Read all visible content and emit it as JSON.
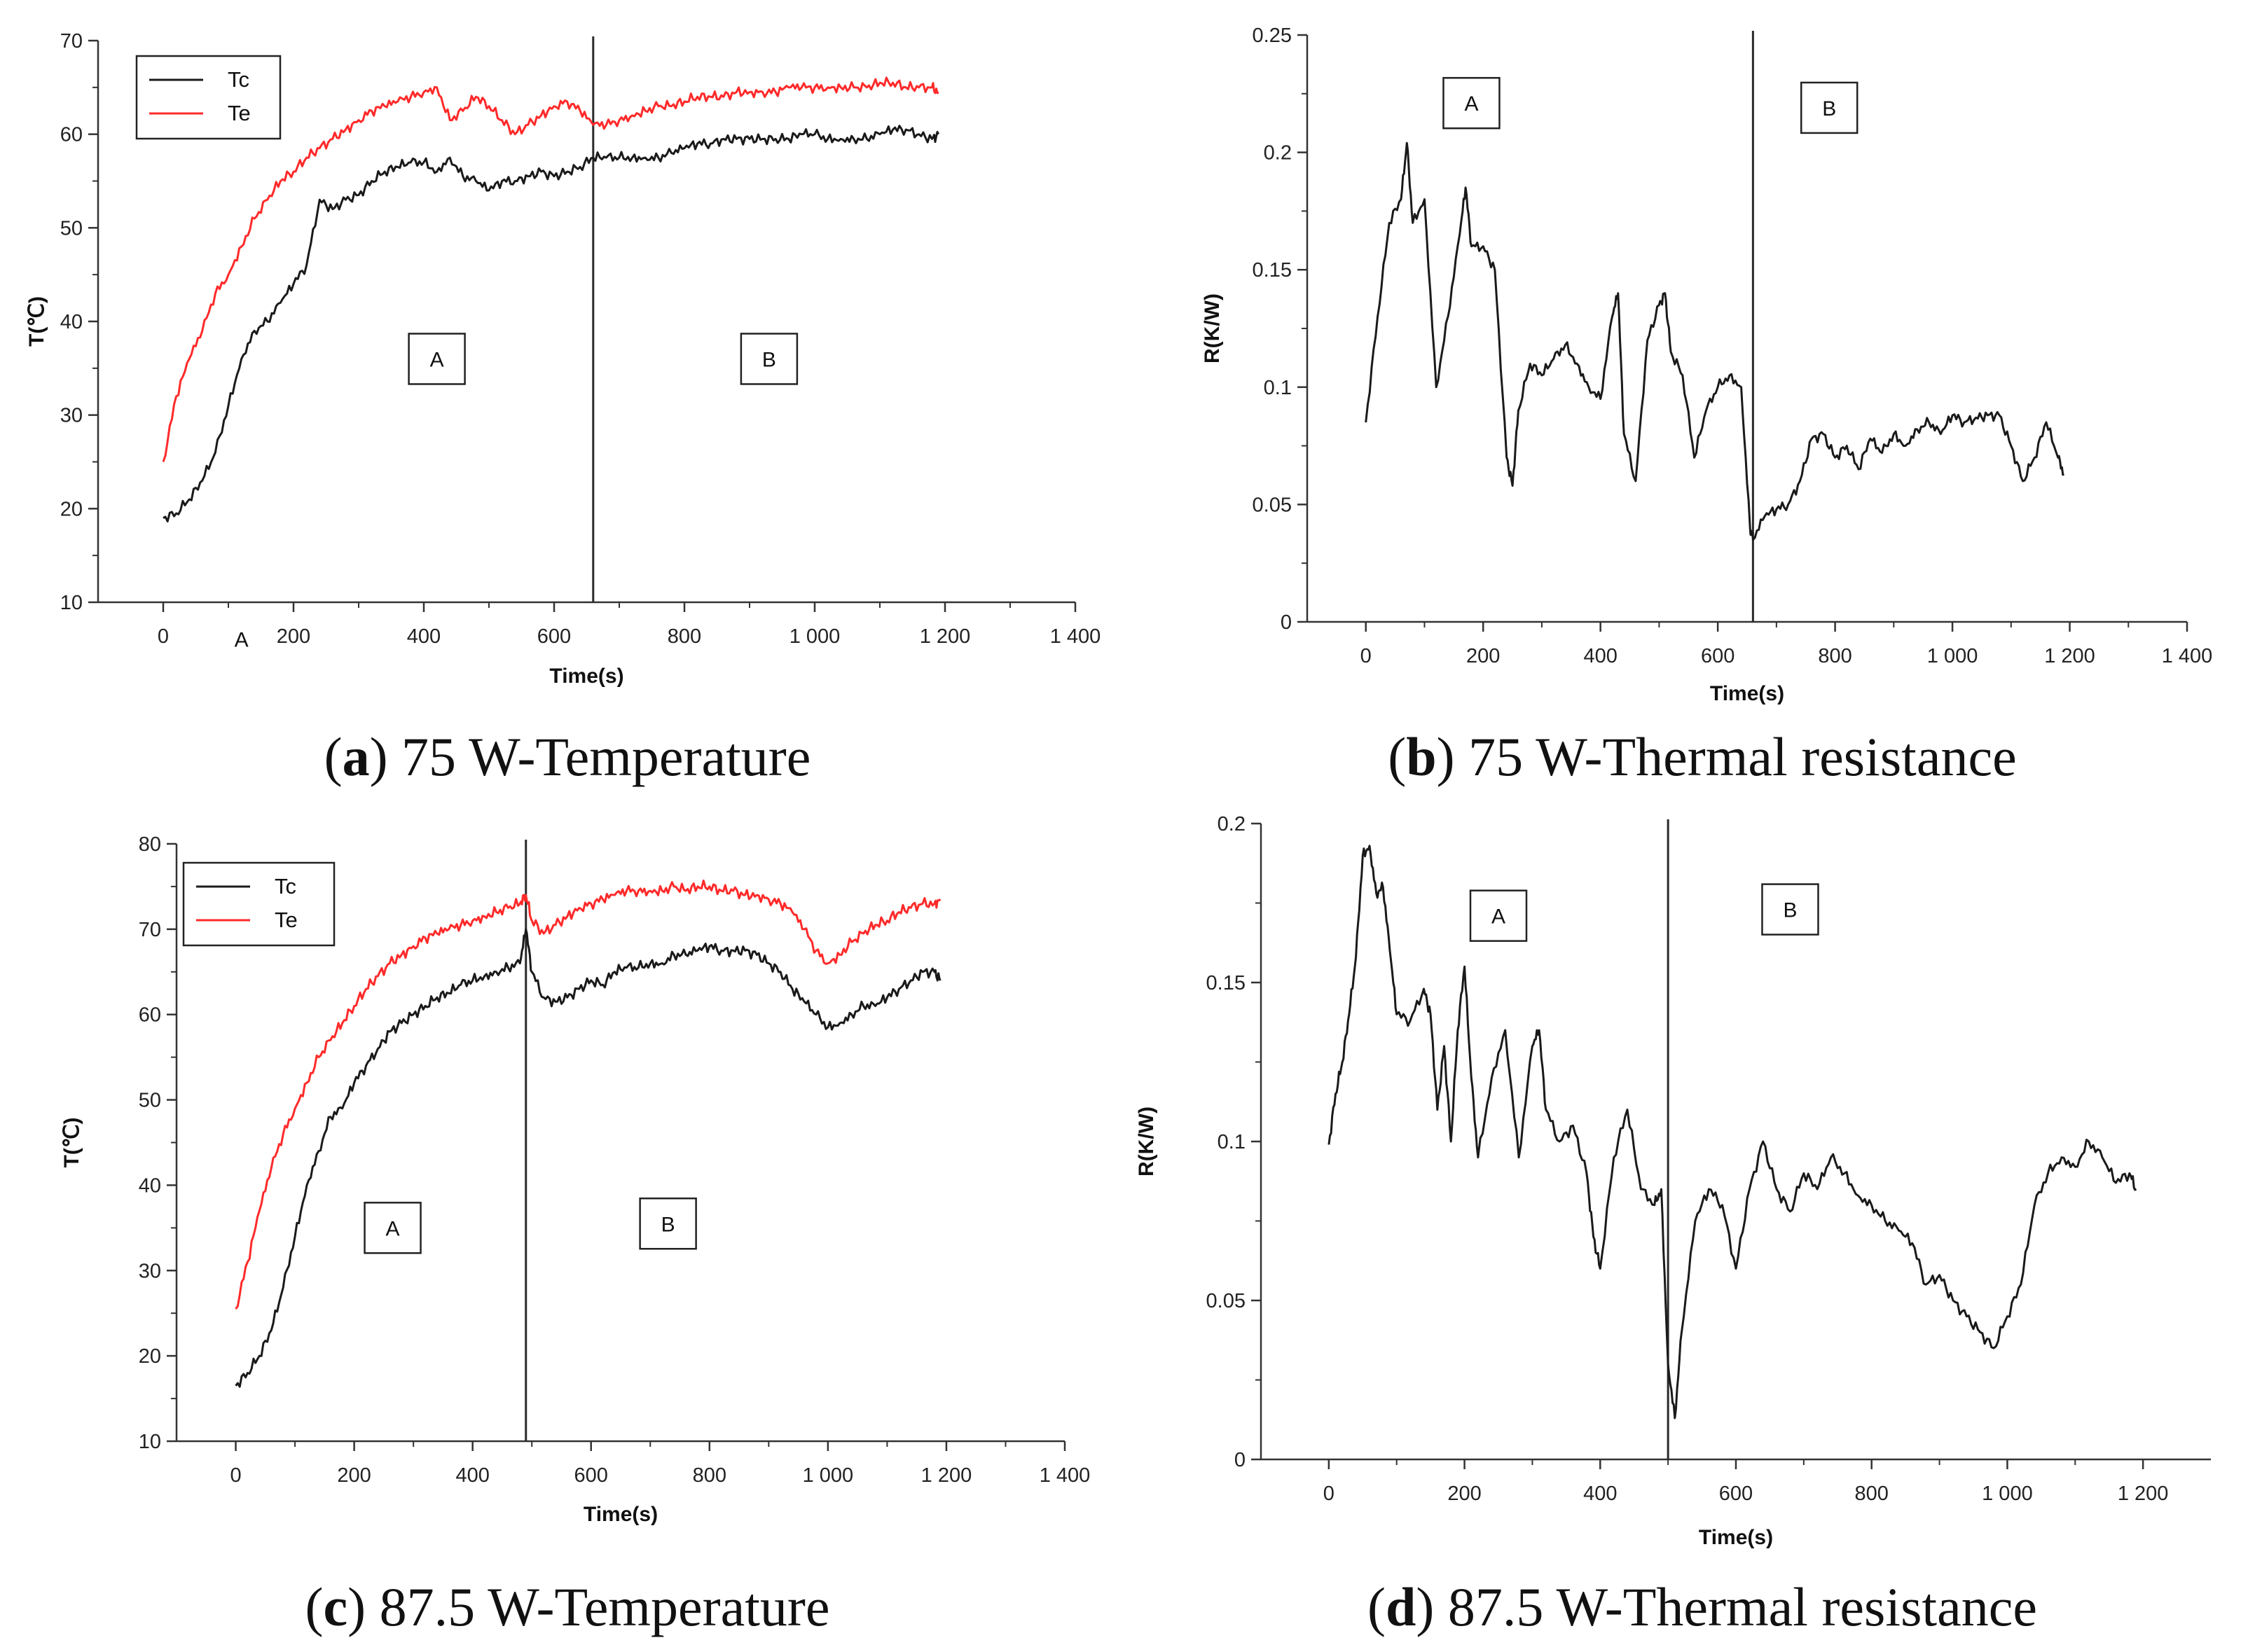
{
  "captions": [
    {
      "letter": "a",
      "text": "75 W-Temperature"
    },
    {
      "letter": "b",
      "text": "75 W-Thermal resistance"
    },
    {
      "letter": "c",
      "text": "87.5 W-Temperature"
    },
    {
      "letter": "d",
      "text": "87.5 W-Thermal resistance"
    }
  ],
  "colors": {
    "tc": "#1a1a1a",
    "te": "#ff2a2a",
    "axis": "#333333"
  },
  "chart_data": [
    {
      "id": "a",
      "type": "line",
      "title": "75 W-Temperature",
      "xlabel": "Time(s)",
      "ylabel": "T(℃)",
      "xlim": [
        -100,
        1400
      ],
      "ylim": [
        10,
        70
      ],
      "xticks": [
        0,
        200,
        400,
        600,
        800,
        1000,
        1200,
        1400
      ],
      "xtick_labels": [
        "0",
        "200",
        "400",
        "600",
        "800",
        "1 000",
        "1 200",
        "1 400"
      ],
      "yticks": [
        10,
        20,
        30,
        40,
        50,
        60,
        70
      ],
      "ytick_labels": [
        "10",
        "20",
        "30",
        "40",
        "50",
        "60",
        "70"
      ],
      "legend": [
        "Tc",
        "Te"
      ],
      "legend_position": "top-left",
      "divider_x": 660,
      "regions": [
        {
          "label": "A",
          "x": 420,
          "y": 36
        },
        {
          "label": "B",
          "x": 930,
          "y": 36
        }
      ],
      "extra_annotations": [
        {
          "label": "A",
          "x": 120,
          "y": 6
        }
      ],
      "series": [
        {
          "name": "Tc",
          "color": "#1a1a1a",
          "x": [
            0,
            20,
            40,
            60,
            80,
            100,
            120,
            140,
            160,
            180,
            200,
            220,
            240,
            260,
            280,
            300,
            320,
            340,
            360,
            380,
            400,
            420,
            440,
            460,
            480,
            500,
            520,
            540,
            560,
            580,
            600,
            620,
            640,
            660,
            680,
            700,
            720,
            740,
            760,
            780,
            800,
            820,
            840,
            860,
            880,
            900,
            920,
            940,
            960,
            980,
            1000,
            1020,
            1040,
            1060,
            1080,
            1100,
            1120,
            1140,
            1160,
            1180,
            1190
          ],
          "y": [
            19,
            19.5,
            21,
            23,
            26,
            31,
            36,
            39,
            40,
            42,
            44,
            46,
            53,
            52,
            53,
            53.5,
            55,
            56,
            56.5,
            57,
            57,
            56,
            57.5,
            55.5,
            55,
            54,
            55,
            55,
            55.5,
            56,
            55.5,
            56,
            56.5,
            57.5,
            57.5,
            57.5,
            57.5,
            57.5,
            57.5,
            58,
            58.5,
            59,
            59,
            59.5,
            59.5,
            59.5,
            59.5,
            59.5,
            59.5,
            60,
            60,
            59.5,
            59.5,
            59.5,
            59.5,
            60,
            60.5,
            60.5,
            60,
            59.5,
            60
          ]
        },
        {
          "name": "Te",
          "color": "#ff2a2a",
          "x": [
            0,
            20,
            40,
            60,
            80,
            100,
            120,
            140,
            160,
            180,
            200,
            220,
            240,
            260,
            280,
            300,
            320,
            340,
            360,
            380,
            400,
            420,
            440,
            460,
            480,
            500,
            520,
            540,
            560,
            580,
            600,
            620,
            640,
            660,
            680,
            700,
            720,
            740,
            760,
            780,
            800,
            820,
            840,
            860,
            880,
            900,
            920,
            940,
            960,
            980,
            1000,
            1020,
            1040,
            1060,
            1080,
            1100,
            1120,
            1140,
            1160,
            1180,
            1190
          ],
          "y": [
            25,
            32,
            36,
            39,
            43,
            45,
            48,
            51,
            53,
            55,
            56,
            57.5,
            58.5,
            59.5,
            60.5,
            61.5,
            62.5,
            63,
            63.5,
            64,
            64.5,
            65,
            61.5,
            62.5,
            64,
            63,
            61.5,
            60,
            61,
            62,
            63,
            63.5,
            62.5,
            61,
            61,
            61.5,
            62,
            62.5,
            63,
            63,
            63.5,
            64,
            64,
            64,
            64.5,
            64.5,
            64.5,
            64.5,
            65,
            65,
            65,
            65,
            65,
            65,
            65,
            65.5,
            65.5,
            65,
            65,
            65,
            64.5
          ]
        }
      ]
    },
    {
      "id": "b",
      "type": "line",
      "title": "75 W-Thermal resistance",
      "xlabel": "Time(s)",
      "ylabel": "R(K/W)",
      "xlim": [
        -100,
        1400
      ],
      "ylim": [
        0,
        0.25
      ],
      "xticks": [
        0,
        200,
        400,
        600,
        800,
        1000,
        1200,
        1400
      ],
      "xtick_labels": [
        "0",
        "200",
        "400",
        "600",
        "800",
        "1 000",
        "1 200",
        "1 400"
      ],
      "yticks": [
        0,
        0.05,
        0.1,
        0.15,
        0.2,
        0.25
      ],
      "ytick_labels": [
        "0",
        "0.05",
        "0.1",
        "0.15",
        "0.2",
        "0.25"
      ],
      "divider_x": 660,
      "regions": [
        {
          "label": "A",
          "x": 180,
          "y": 0.221
        },
        {
          "label": "B",
          "x": 790,
          "y": 0.219
        }
      ],
      "series": [
        {
          "name": "R",
          "color": "#1a1a1a",
          "x": [
            0,
            20,
            40,
            60,
            70,
            80,
            100,
            120,
            140,
            160,
            170,
            180,
            200,
            220,
            240,
            250,
            260,
            280,
            300,
            320,
            340,
            360,
            380,
            400,
            420,
            430,
            440,
            460,
            480,
            500,
            510,
            520,
            540,
            560,
            580,
            600,
            620,
            640,
            655,
            660,
            680,
            700,
            720,
            740,
            760,
            780,
            800,
            820,
            840,
            860,
            880,
            900,
            920,
            940,
            960,
            980,
            1000,
            1020,
            1040,
            1060,
            1080,
            1100,
            1120,
            1140,
            1160,
            1180,
            1190
          ],
          "y": [
            0.085,
            0.13,
            0.17,
            0.18,
            0.204,
            0.17,
            0.18,
            0.1,
            0.13,
            0.165,
            0.185,
            0.16,
            0.16,
            0.15,
            0.07,
            0.058,
            0.09,
            0.11,
            0.105,
            0.112,
            0.118,
            0.11,
            0.1,
            0.095,
            0.13,
            0.14,
            0.08,
            0.06,
            0.12,
            0.135,
            0.14,
            0.115,
            0.105,
            0.07,
            0.09,
            0.1,
            0.105,
            0.1,
            0.04,
            0.035,
            0.045,
            0.048,
            0.05,
            0.06,
            0.078,
            0.08,
            0.07,
            0.075,
            0.065,
            0.078,
            0.072,
            0.08,
            0.075,
            0.082,
            0.085,
            0.08,
            0.088,
            0.085,
            0.087,
            0.088,
            0.088,
            0.075,
            0.06,
            0.07,
            0.085,
            0.07,
            0.063
          ]
        }
      ]
    },
    {
      "id": "c",
      "type": "line",
      "title": "87.5 W-Temperature",
      "xlabel": "Time(s)",
      "ylabel": "T(℃)",
      "xlim": [
        -100,
        1400
      ],
      "ylim": [
        10,
        80
      ],
      "xticks": [
        0,
        200,
        400,
        600,
        800,
        1000,
        1200,
        1400
      ],
      "xtick_labels": [
        "0",
        "200",
        "400",
        "600",
        "800",
        "1 000",
        "1 200",
        "1 400"
      ],
      "yticks": [
        10,
        20,
        30,
        40,
        50,
        60,
        70,
        80
      ],
      "ytick_labels": [
        "10",
        "20",
        "30",
        "40",
        "50",
        "60",
        "70",
        "80"
      ],
      "legend": [
        "Tc",
        "Te"
      ],
      "legend_position": "top-left",
      "divider_x": 490,
      "regions": [
        {
          "label": "A",
          "x": 265,
          "y": 35
        },
        {
          "label": "B",
          "x": 730,
          "y": 35.5
        }
      ],
      "series": [
        {
          "name": "Tc",
          "color": "#1a1a1a",
          "x": [
            0,
            20,
            40,
            60,
            80,
            100,
            120,
            140,
            160,
            180,
            200,
            220,
            240,
            260,
            280,
            300,
            320,
            340,
            360,
            380,
            400,
            420,
            440,
            460,
            480,
            490,
            500,
            520,
            540,
            560,
            580,
            600,
            620,
            640,
            660,
            680,
            700,
            720,
            740,
            760,
            780,
            800,
            820,
            840,
            860,
            880,
            900,
            920,
            940,
            960,
            980,
            1000,
            1020,
            1040,
            1060,
            1080,
            1100,
            1120,
            1140,
            1160,
            1180,
            1190
          ],
          "y": [
            16.5,
            18,
            20,
            23,
            28,
            34,
            40,
            44,
            48,
            49,
            52,
            54,
            56,
            58,
            59,
            60,
            61,
            62,
            62.5,
            63.5,
            64,
            64.5,
            65,
            65.5,
            66,
            70,
            65,
            62,
            61.5,
            62,
            63,
            64,
            63.5,
            65,
            65.5,
            65.5,
            66,
            66,
            67,
            67,
            67.5,
            68,
            67.5,
            67.5,
            67.5,
            67,
            66,
            65,
            63,
            61.5,
            60,
            58.5,
            59,
            60,
            61,
            61,
            62,
            63,
            64,
            65,
            65,
            64
          ]
        },
        {
          "name": "Te",
          "color": "#ff2a2a",
          "x": [
            0,
            20,
            40,
            60,
            80,
            100,
            120,
            140,
            160,
            180,
            200,
            220,
            240,
            260,
            280,
            300,
            320,
            340,
            360,
            380,
            400,
            420,
            440,
            460,
            480,
            490,
            500,
            520,
            540,
            560,
            580,
            600,
            620,
            640,
            660,
            680,
            700,
            720,
            740,
            760,
            780,
            800,
            820,
            840,
            860,
            880,
            900,
            920,
            940,
            960,
            980,
            1000,
            1020,
            1040,
            1060,
            1080,
            1100,
            1120,
            1140,
            1160,
            1180,
            1190
          ],
          "y": [
            25.5,
            31,
            37,
            42,
            46,
            49,
            52,
            55,
            57,
            59,
            61,
            63,
            64.5,
            66,
            67,
            68,
            69,
            69.5,
            70,
            70.5,
            71,
            71.5,
            72,
            72.5,
            73,
            74,
            71,
            69.5,
            70.5,
            71.5,
            72.5,
            73,
            73.5,
            74,
            74.5,
            74.5,
            74.5,
            74.5,
            75,
            74.5,
            75,
            75,
            74.5,
            74.5,
            74,
            74,
            73.5,
            73,
            72,
            70,
            67.5,
            66,
            67,
            68.5,
            69.5,
            70.5,
            71,
            72,
            72.5,
            73,
            73,
            73.5
          ]
        }
      ]
    },
    {
      "id": "d",
      "type": "line",
      "title": "87.5 W-Thermal resistance",
      "xlabel": "Time(s)",
      "ylabel": "R(K/W)",
      "xlim": [
        -100,
        1300
      ],
      "ylim": [
        0,
        0.2
      ],
      "xticks": [
        0,
        200,
        400,
        600,
        800,
        1000,
        1200
      ],
      "xtick_labels": [
        "0",
        "200",
        "400",
        "600",
        "800",
        "1 000",
        "1 200"
      ],
      "yticks": [
        0,
        0.05,
        0.1,
        0.15,
        0.2
      ],
      "ytick_labels": [
        "0",
        "0.05",
        "0.1",
        "0.15",
        "0.2"
      ],
      "divider_x": 500,
      "regions": [
        {
          "label": "A",
          "x": 250,
          "y": 0.171
        },
        {
          "label": "B",
          "x": 680,
          "y": 0.173
        }
      ],
      "series": [
        {
          "name": "R",
          "color": "#1a1a1a",
          "x": [
            0,
            10,
            20,
            30,
            40,
            50,
            60,
            70,
            80,
            90,
            100,
            120,
            140,
            150,
            160,
            170,
            180,
            190,
            200,
            210,
            220,
            240,
            260,
            280,
            300,
            310,
            320,
            340,
            360,
            380,
            390,
            400,
            420,
            440,
            460,
            480,
            490,
            500,
            510,
            520,
            540,
            560,
            580,
            600,
            620,
            640,
            660,
            680,
            700,
            720,
            740,
            760,
            780,
            800,
            820,
            840,
            860,
            880,
            900,
            920,
            940,
            960,
            980,
            1000,
            1020,
            1040,
            1060,
            1080,
            1100,
            1120,
            1140,
            1160,
            1180,
            1190
          ],
          "y": [
            0.099,
            0.115,
            0.125,
            0.14,
            0.158,
            0.19,
            0.193,
            0.178,
            0.18,
            0.16,
            0.14,
            0.138,
            0.148,
            0.14,
            0.11,
            0.13,
            0.1,
            0.135,
            0.155,
            0.12,
            0.095,
            0.12,
            0.135,
            0.095,
            0.13,
            0.135,
            0.11,
            0.1,
            0.105,
            0.09,
            0.07,
            0.06,
            0.095,
            0.11,
            0.085,
            0.08,
            0.085,
            0.03,
            0.013,
            0.04,
            0.075,
            0.085,
            0.08,
            0.06,
            0.085,
            0.1,
            0.085,
            0.078,
            0.09,
            0.085,
            0.095,
            0.09,
            0.083,
            0.08,
            0.075,
            0.072,
            0.068,
            0.055,
            0.058,
            0.05,
            0.045,
            0.04,
            0.035,
            0.045,
            0.055,
            0.08,
            0.09,
            0.095,
            0.092,
            0.1,
            0.095,
            0.087,
            0.09,
            0.085
          ]
        }
      ]
    }
  ]
}
